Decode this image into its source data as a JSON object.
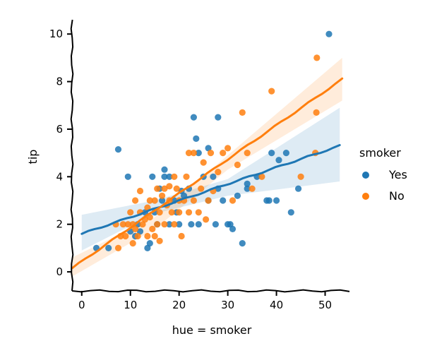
{
  "chart_data": {
    "type": "scatter",
    "xlabel": "hue = smoker",
    "ylabel": "tip",
    "xlim": [
      -2,
      55
    ],
    "ylim": [
      -0.8,
      10.6
    ],
    "x_ticks": [
      0,
      10,
      20,
      30,
      40,
      50
    ],
    "x_tick_labels": [
      "0",
      "10",
      "20",
      "30",
      "40",
      "50"
    ],
    "y_ticks": [
      0,
      2,
      4,
      6,
      8,
      10
    ],
    "y_tick_labels": [
      "0",
      "2",
      "4",
      "6",
      "8",
      "10"
    ],
    "legend": {
      "title": "smoker",
      "placement": "right",
      "entries": [
        "Yes",
        "No"
      ]
    },
    "grid": false,
    "series": [
      {
        "name": "Yes",
        "color": "#1f77b4",
        "points": [
          [
            3,
            1
          ],
          [
            5.5,
            1
          ],
          [
            7.5,
            5.15
          ],
          [
            9.5,
            4
          ],
          [
            10,
            1.7
          ],
          [
            11,
            1.5
          ],
          [
            11.5,
            2
          ],
          [
            12,
            1.7
          ],
          [
            13,
            2.5
          ],
          [
            13.5,
            1
          ],
          [
            14,
            1.2
          ],
          [
            14.5,
            4
          ],
          [
            15,
            2.5
          ],
          [
            15.5,
            2
          ],
          [
            16,
            3.5
          ],
          [
            16.5,
            3
          ],
          [
            17,
            4
          ],
          [
            17,
            4.3
          ],
          [
            18,
            4
          ],
          [
            18,
            2
          ],
          [
            19,
            3
          ],
          [
            19.5,
            2.5
          ],
          [
            20,
            2
          ],
          [
            20.5,
            3.4
          ],
          [
            21,
            3.2
          ],
          [
            22,
            3.5
          ],
          [
            22.5,
            2
          ],
          [
            23,
            6.5
          ],
          [
            23.5,
            5.6
          ],
          [
            24,
            5
          ],
          [
            24,
            2
          ],
          [
            25,
            4
          ],
          [
            26,
            5.2
          ],
          [
            26,
            3
          ],
          [
            27,
            4
          ],
          [
            27.5,
            2
          ],
          [
            28,
            6.5
          ],
          [
            28,
            3.5
          ],
          [
            29,
            3
          ],
          [
            30,
            2
          ],
          [
            30.5,
            2
          ],
          [
            31,
            1.8
          ],
          [
            32,
            3.2
          ],
          [
            33,
            1.2
          ],
          [
            34,
            3.5
          ],
          [
            34,
            3.7
          ],
          [
            36,
            4
          ],
          [
            38,
            3
          ],
          [
            38.5,
            3
          ],
          [
            39,
            5
          ],
          [
            40,
            3
          ],
          [
            40.5,
            4.7
          ],
          [
            42,
            5
          ],
          [
            43,
            2.5
          ],
          [
            44.5,
            3.5
          ],
          [
            50.8,
            10
          ]
        ],
        "fit_line": {
          "x": [
            0,
            53
          ],
          "y": [
            1.6,
            5.3
          ]
        },
        "ci_band": {
          "x": [
            0,
            15,
            30,
            53
          ],
          "upper": [
            2.4,
            3,
            3.9,
            6.9
          ],
          "lower": [
            0.9,
            2.45,
            3.2,
            3.8
          ]
        }
      },
      {
        "name": "No",
        "color": "#ff7f0e",
        "points": [
          [
            7,
            2
          ],
          [
            7.5,
            1
          ],
          [
            8,
            1.5
          ],
          [
            8.5,
            2
          ],
          [
            9,
            1.5
          ],
          [
            9.5,
            2
          ],
          [
            10,
            2.5
          ],
          [
            10.5,
            1.2
          ],
          [
            10.5,
            2
          ],
          [
            11,
            1.8
          ],
          [
            11,
            3
          ],
          [
            11.5,
            1.5
          ],
          [
            12,
            2.5
          ],
          [
            12,
            3.4
          ],
          [
            12.5,
            2
          ],
          [
            13,
            2.2
          ],
          [
            13.5,
            1.5
          ],
          [
            13.5,
            2.7
          ],
          [
            14,
            3
          ],
          [
            14,
            2.3
          ],
          [
            14.5,
            1.8
          ],
          [
            15,
            3
          ],
          [
            15,
            1.5
          ],
          [
            15.5,
            2
          ],
          [
            15.5,
            3.5
          ],
          [
            16,
            2.5
          ],
          [
            16,
            1.3
          ],
          [
            16.5,
            3.2
          ],
          [
            17,
            2
          ],
          [
            17,
            3.5
          ],
          [
            17.5,
            2.8
          ],
          [
            18,
            3
          ],
          [
            18,
            3.6
          ],
          [
            18.5,
            2.5
          ],
          [
            19,
            2
          ],
          [
            19,
            4
          ],
          [
            19.5,
            3.5
          ],
          [
            20,
            3
          ],
          [
            20,
            2.5
          ],
          [
            20.5,
            1.5
          ],
          [
            21,
            3
          ],
          [
            21.5,
            4
          ],
          [
            22,
            5
          ],
          [
            22,
            2.5
          ],
          [
            23,
            3
          ],
          [
            23,
            5
          ],
          [
            24,
            2.5
          ],
          [
            24.5,
            3.5
          ],
          [
            25,
            4.6
          ],
          [
            25.5,
            2.2
          ],
          [
            26,
            3
          ],
          [
            26.5,
            5
          ],
          [
            27,
            3.4
          ],
          [
            28,
            4.2
          ],
          [
            29,
            5
          ],
          [
            30,
            5.2
          ],
          [
            31,
            3
          ],
          [
            32,
            4.5
          ],
          [
            33,
            6.7
          ],
          [
            34,
            5
          ],
          [
            35,
            3.5
          ],
          [
            37,
            4
          ],
          [
            39,
            7.6
          ],
          [
            45,
            4
          ],
          [
            48,
            5
          ],
          [
            48.2,
            6.7
          ],
          [
            48.3,
            9
          ]
        ],
        "fit_line": {
          "x": [
            -2,
            53.5
          ],
          "y": [
            0.15,
            8.1
          ]
        },
        "ci_band": {
          "x": [
            -2,
            15,
            30,
            53.5
          ],
          "upper": [
            0.6,
            2.3,
            4.9,
            9
          ],
          "lower": [
            -0.2,
            1.8,
            4.3,
            7.2
          ]
        }
      }
    ]
  },
  "colors": {
    "yes": "#1f77b4",
    "no": "#ff7f0e",
    "axis": "#000000"
  }
}
